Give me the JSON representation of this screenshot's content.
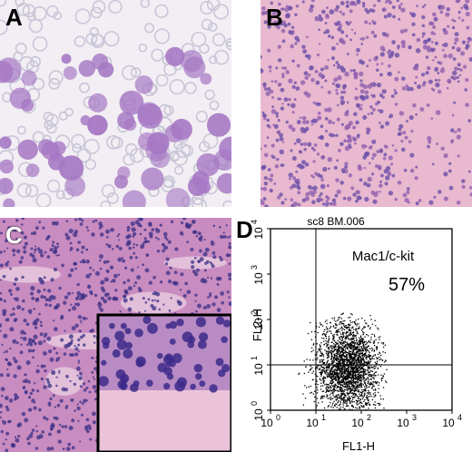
{
  "panels": {
    "a": {
      "label": "A"
    },
    "b": {
      "label": "B"
    },
    "c": {
      "label": "C"
    },
    "d": {
      "label": "D"
    }
  },
  "facs": {
    "title": "sc8 BM.006",
    "gate_label": "Mac1/c-kit",
    "percent": "57%",
    "x_axis_label": "FL1-H",
    "y_axis_label": "FL2-H",
    "x_ticks": [
      {
        "base": "10",
        "exp": "0"
      },
      {
        "base": "10",
        "exp": "1"
      },
      {
        "base": "10",
        "exp": "2"
      },
      {
        "base": "10",
        "exp": "3"
      },
      {
        "base": "10",
        "exp": "4"
      }
    ],
    "y_ticks": [
      {
        "base": "10",
        "exp": "0"
      },
      {
        "base": "10",
        "exp": "1"
      },
      {
        "base": "10",
        "exp": "2"
      },
      {
        "base": "10",
        "exp": "3"
      },
      {
        "base": "10",
        "exp": "4"
      }
    ],
    "quadrant_gate": {
      "x": 10,
      "y": 10
    },
    "colors": {
      "points": "#000000",
      "axes": "#000000"
    }
  },
  "colors": {
    "blood_smear_bg": "#f2eef3",
    "tissue_b": "#e8b9cf",
    "tissue_c": "#c98cc0",
    "blast_cell": "#a678c4",
    "rbc": "#c9c6d8",
    "hematoxylin": "#3a2f86"
  }
}
